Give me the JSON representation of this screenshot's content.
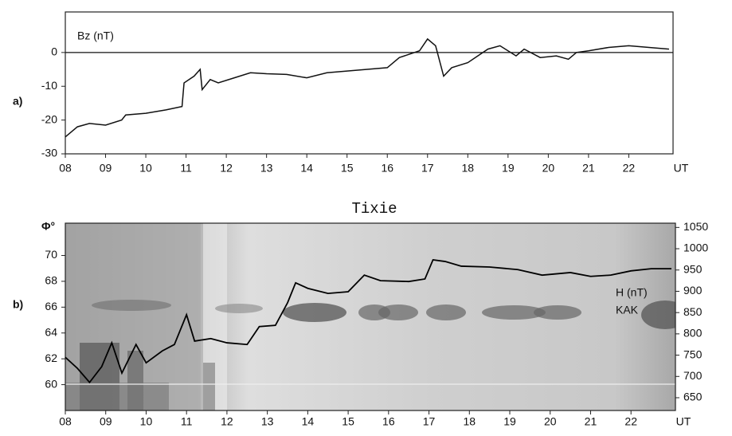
{
  "chart_data": [
    {
      "type": "line",
      "panel_label": "a)",
      "ylabel": "Bz (nT)",
      "xlabel": "UT",
      "xlim": [
        8,
        23.1
      ],
      "ylim": [
        -30,
        12
      ],
      "yticks": [
        0,
        -10,
        -20,
        -30
      ],
      "zero_line": true,
      "xticks": [
        {
          "value": 8,
          "label": "08"
        },
        {
          "value": 9,
          "label": "09"
        },
        {
          "value": 10,
          "label": "10"
        },
        {
          "value": 11,
          "label": "11"
        },
        {
          "value": 12,
          "label": "12"
        },
        {
          "value": 13,
          "label": "13"
        },
        {
          "value": 14,
          "label": "14"
        },
        {
          "value": 15,
          "label": "15"
        },
        {
          "value": 16,
          "label": "16"
        },
        {
          "value": 17,
          "label": "17"
        },
        {
          "value": 18,
          "label": "18"
        },
        {
          "value": 19,
          "label": "19"
        },
        {
          "value": 20,
          "label": "20"
        },
        {
          "value": 21,
          "label": "21"
        },
        {
          "value": 22,
          "label": "22"
        }
      ],
      "x": [
        8.0,
        8.3,
        8.6,
        9.0,
        9.4,
        9.5,
        10.0,
        10.5,
        10.9,
        10.95,
        11.2,
        11.35,
        11.4,
        11.6,
        11.8,
        12.2,
        12.6,
        13.0,
        13.5,
        14.0,
        14.5,
        15.0,
        15.5,
        16.0,
        16.3,
        16.8,
        17.0,
        17.2,
        17.4,
        17.6,
        18.0,
        18.5,
        18.8,
        19.2,
        19.4,
        19.8,
        20.2,
        20.5,
        20.7,
        21.0,
        21.5,
        22.0,
        22.5,
        23.0
      ],
      "series": [
        {
          "color": "#111111",
          "values": [
            -25,
            -22,
            -21,
            -21.5,
            -20,
            -18.5,
            -18,
            -17,
            -16,
            -9,
            -7,
            -5,
            -11,
            -8,
            -9,
            -7.5,
            -6,
            -6.3,
            -6.5,
            -7.5,
            -6,
            -5.5,
            -5,
            -4.5,
            -1.5,
            0.5,
            4,
            2,
            -7,
            -4.5,
            -3,
            1,
            2,
            -1,
            1,
            -1.5,
            -1,
            -2,
            0,
            0.5,
            1.5,
            2,
            1.5,
            1
          ]
        }
      ]
    },
    {
      "type": "line",
      "panel_label": "b)",
      "title": "Tixie",
      "ylabel": "Φ°",
      "y2label": "H (nT)",
      "xlabel": "UT",
      "xlim": [
        8,
        23.1
      ],
      "ylim": [
        58,
        72.5
      ],
      "yticks": [
        60,
        62,
        64,
        66,
        68,
        70
      ],
      "y2lim": [
        620,
        1060
      ],
      "y2ticks": [
        650,
        700,
        750,
        800,
        850,
        900,
        950,
        1000,
        1050
      ],
      "xticks": [
        {
          "value": 8,
          "label": "08"
        },
        {
          "value": 9,
          "label": "09"
        },
        {
          "value": 10,
          "label": "10"
        },
        {
          "value": 11,
          "label": "11"
        },
        {
          "value": 12,
          "label": "12"
        },
        {
          "value": 13,
          "label": "13"
        },
        {
          "value": 14,
          "label": "14"
        },
        {
          "value": 15,
          "label": "15"
        },
        {
          "value": 16,
          "label": "16"
        },
        {
          "value": 17,
          "label": "17"
        },
        {
          "value": 18,
          "label": "18"
        },
        {
          "value": 19,
          "label": "19"
        },
        {
          "value": 20,
          "label": "20"
        },
        {
          "value": 21,
          "label": "21"
        },
        {
          "value": 22,
          "label": "22"
        }
      ],
      "x": [
        8.0,
        8.3,
        8.6,
        8.9,
        9.15,
        9.4,
        9.75,
        10.0,
        10.4,
        10.7,
        11.0,
        11.2,
        11.6,
        12.0,
        12.5,
        12.8,
        13.2,
        13.5,
        13.7,
        14.0,
        14.5,
        15.0,
        15.4,
        15.8,
        16.5,
        16.9,
        17.1,
        17.4,
        17.8,
        18.5,
        19.2,
        19.8,
        20.5,
        21.0,
        21.5,
        22.0,
        22.5,
        23.0
      ],
      "series": [
        {
          "name": "KAK",
          "axis": "y2",
          "color": "#000000",
          "values": [
            745,
            719,
            686,
            723,
            779,
            708,
            775,
            732,
            760,
            775,
            845,
            783,
            789,
            779,
            775,
            817,
            820,
            873,
            920,
            907,
            895,
            899,
            938,
            925,
            923,
            929,
            974,
            970,
            959,
            957,
            951,
            938,
            944,
            935,
            938,
            948,
            953,
            953
          ]
        }
      ]
    }
  ]
}
